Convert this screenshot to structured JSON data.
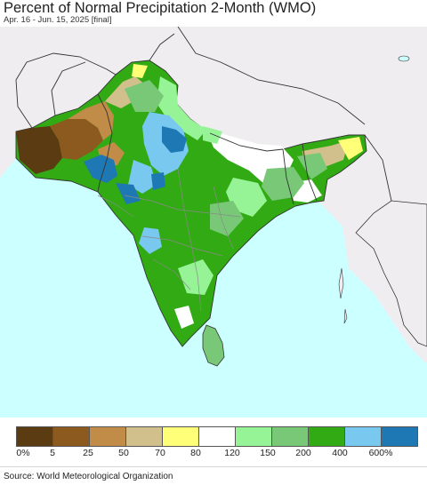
{
  "header": {
    "title": "Percent of Normal Precipitation 2-Month (WMO)",
    "subtitle": "Apr. 16 - Jun. 15, 2025 [final]"
  },
  "map": {
    "region": "South Asia",
    "colors": {
      "land_outside": "#efedf0",
      "ocean": "#ccffff",
      "borders": "#333333",
      "inner_borders": "#9a9a9a"
    }
  },
  "legend": {
    "swatches": [
      {
        "color": "#5a3b12"
      },
      {
        "color": "#8c5a1e"
      },
      {
        "color": "#c08c48"
      },
      {
        "color": "#d2c08c"
      },
      {
        "color": "#ffff78"
      },
      {
        "color": "#ffffff"
      },
      {
        "color": "#96f496"
      },
      {
        "color": "#78c878"
      },
      {
        "color": "#32aa14"
      },
      {
        "color": "#78c8f0"
      },
      {
        "color": "#1e78b4"
      }
    ],
    "labels": [
      "0%",
      "5",
      "25",
      "50",
      "70",
      "80",
      "120",
      "150",
      "200",
      "400",
      "600%"
    ]
  },
  "footer": {
    "source": "Source: World Meteorological Organization"
  }
}
